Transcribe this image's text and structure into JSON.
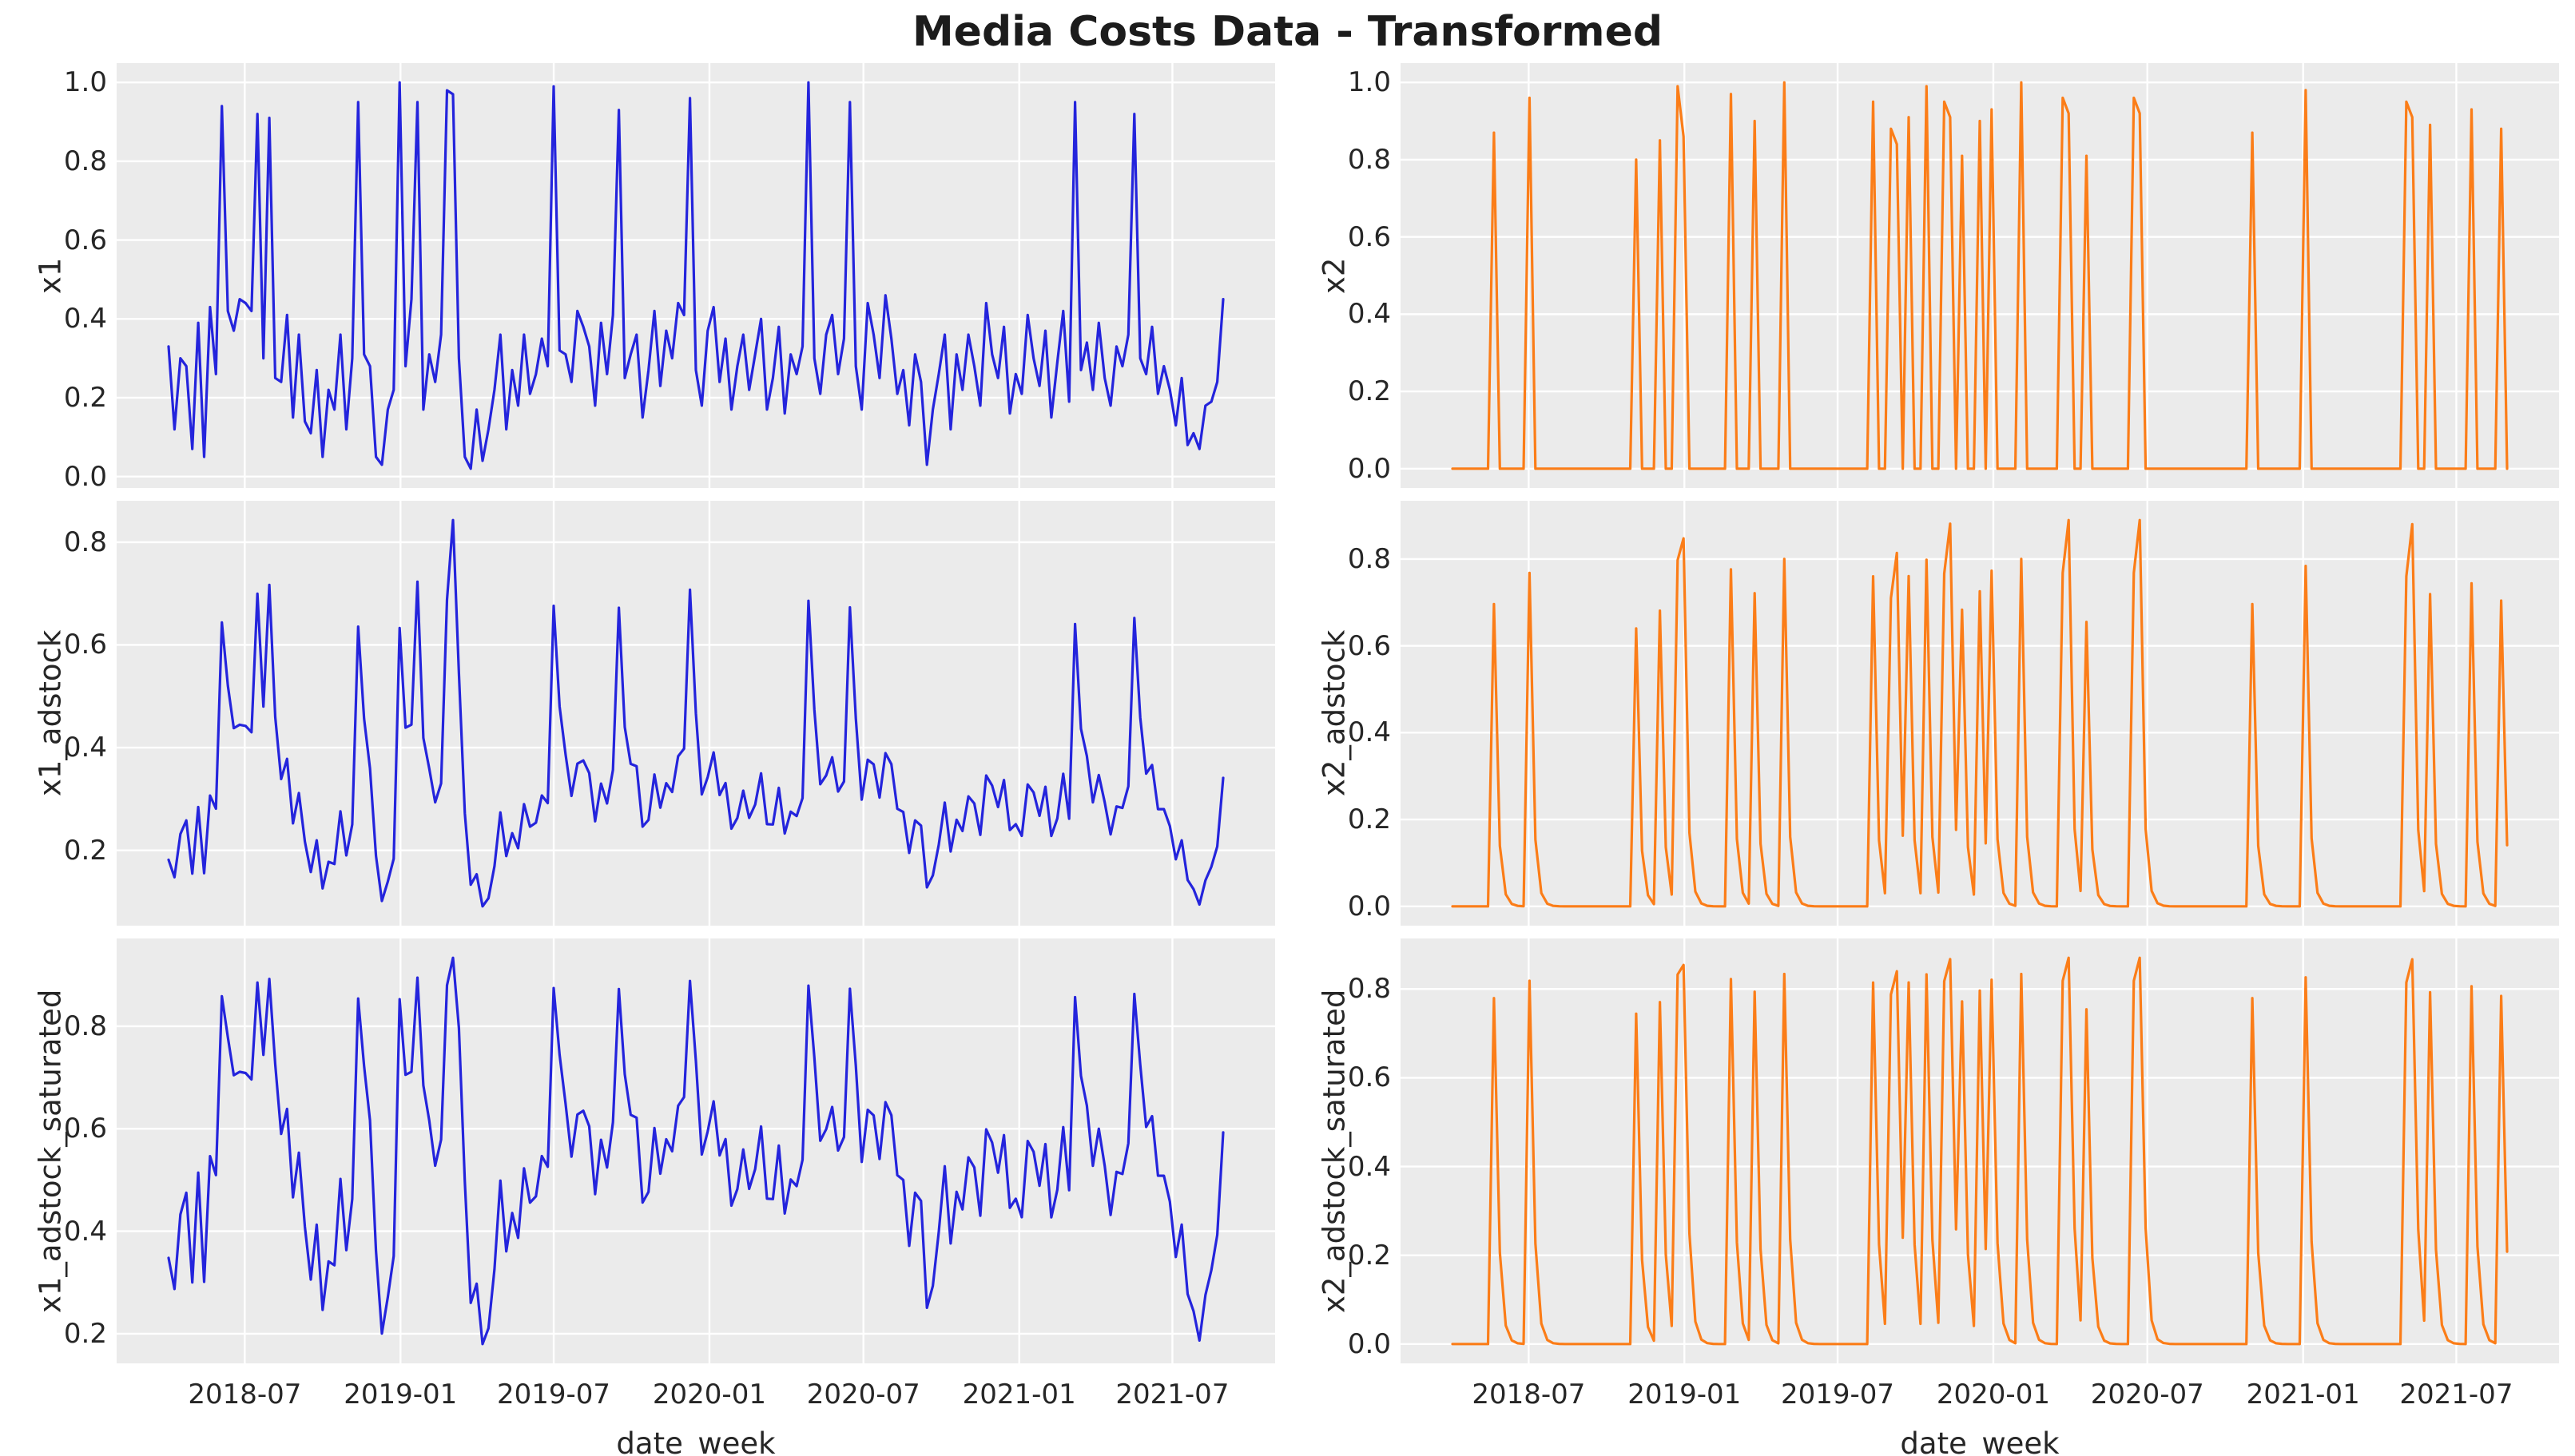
{
  "title": "Media Costs Data - Transformed",
  "style": {
    "figure_bg": "#ffffff",
    "axes_bg": "#ebebeb",
    "grid_color": "#ffffff",
    "text_color": "#262626",
    "title_color": "#1c1c1c",
    "x1_line_color": "#2424dc",
    "x2_line_color": "#fb7d18"
  },
  "chart_data": {
    "type": "line",
    "title": "Media Costs Data - Transformed",
    "xlabel": "date_week",
    "grid": "on",
    "legend": "none",
    "x_axis": {
      "start_date": "2018-04-02",
      "step_days": 7,
      "n_points": 179,
      "tick_labels": [
        "2018-07",
        "2019-01",
        "2019-07",
        "2020-01",
        "2020-07",
        "2021-01",
        "2021-07"
      ],
      "tick_dates": [
        "2018-07-01",
        "2019-01-01",
        "2019-07-01",
        "2020-01-01",
        "2020-07-01",
        "2021-01-01",
        "2021-07-01"
      ]
    },
    "panels": [
      {
        "key": "x1",
        "ylabel": "x1",
        "row": 0,
        "col": 0,
        "color": "#2424dc",
        "y_tick_labels": [
          "0.0",
          "0.2",
          "0.4",
          "0.6",
          "0.8",
          "1.0"
        ]
      },
      {
        "key": "x2",
        "ylabel": "x2",
        "row": 0,
        "col": 1,
        "color": "#fb7d18",
        "y_tick_labels": [
          "0.0",
          "0.2",
          "0.4",
          "0.6",
          "0.8",
          "1.0"
        ]
      },
      {
        "key": "x1_adstock",
        "ylabel": "x1_adstock",
        "row": 1,
        "col": 0,
        "color": "#2424dc",
        "y_tick_labels": [
          "0.2",
          "0.4",
          "0.6",
          "0.8"
        ]
      },
      {
        "key": "x2_adstock",
        "ylabel": "x2_adstock",
        "row": 1,
        "col": 1,
        "color": "#fb7d18",
        "y_tick_labels": [
          "0.0",
          "0.2",
          "0.4",
          "0.6",
          "0.8"
        ]
      },
      {
        "key": "x1_adstock_saturated",
        "ylabel": "x1_adstock_saturated",
        "row": 2,
        "col": 0,
        "color": "#2424dc",
        "y_tick_labels": [
          "0.2",
          "0.4",
          "0.6",
          "0.8"
        ]
      },
      {
        "key": "x2_adstock_saturated",
        "ylabel": "x2_adstock_saturated",
        "row": 2,
        "col": 1,
        "color": "#fb7d18",
        "y_tick_labels": [
          "0.0",
          "0.2",
          "0.4",
          "0.6",
          "0.8"
        ]
      }
    ],
    "series": {
      "x1": [
        0.33,
        0.12,
        0.3,
        0.28,
        0.07,
        0.39,
        0.05,
        0.43,
        0.26,
        0.94,
        0.42,
        0.37,
        0.45,
        0.44,
        0.42,
        0.92,
        0.3,
        0.91,
        0.25,
        0.24,
        0.41,
        0.15,
        0.36,
        0.14,
        0.11,
        0.27,
        0.05,
        0.22,
        0.17,
        0.36,
        0.12,
        0.3,
        0.95,
        0.31,
        0.28,
        0.05,
        0.03,
        0.17,
        0.22,
        1.0,
        0.28,
        0.45,
        0.95,
        0.17,
        0.31,
        0.24,
        0.36,
        0.98,
        0.97,
        0.3,
        0.05,
        0.02,
        0.17,
        0.04,
        0.12,
        0.22,
        0.36,
        0.12,
        0.27,
        0.18,
        0.36,
        0.21,
        0.26,
        0.35,
        0.28,
        0.99,
        0.32,
        0.31,
        0.24,
        0.42,
        0.38,
        0.33,
        0.18,
        0.39,
        0.26,
        0.41,
        0.93,
        0.25,
        0.31,
        0.36,
        0.15,
        0.27,
        0.42,
        0.23,
        0.37,
        0.3,
        0.44,
        0.41,
        0.96,
        0.27,
        0.18,
        0.37,
        0.43,
        0.24,
        0.35,
        0.17,
        0.28,
        0.36,
        0.22,
        0.31,
        0.4,
        0.17,
        0.25,
        0.38,
        0.16,
        0.31,
        0.26,
        0.33,
        1.0,
        0.3,
        0.21,
        0.36,
        0.41,
        0.26,
        0.35,
        0.95,
        0.28,
        0.17,
        0.44,
        0.36,
        0.25,
        0.46,
        0.35,
        0.21,
        0.27,
        0.13,
        0.31,
        0.24,
        0.03,
        0.17,
        0.26,
        0.36,
        0.12,
        0.31,
        0.22,
        0.36,
        0.28,
        0.18,
        0.44,
        0.31,
        0.25,
        0.38,
        0.16,
        0.26,
        0.21,
        0.41,
        0.3,
        0.23,
        0.37,
        0.15,
        0.29,
        0.42,
        0.19,
        0.95,
        0.27,
        0.34,
        0.22,
        0.39,
        0.25,
        0.18,
        0.33,
        0.28,
        0.36,
        0.92,
        0.3,
        0.26,
        0.38,
        0.21,
        0.28,
        0.22,
        0.13,
        0.25,
        0.08,
        0.11,
        0.07,
        0.18,
        0.19,
        0.24,
        0.45
      ],
      "x2": [
        0,
        0,
        0,
        0,
        0,
        0,
        0,
        0.87,
        0,
        0,
        0,
        0,
        0,
        0.96,
        0,
        0,
        0,
        0,
        0,
        0,
        0,
        0,
        0,
        0,
        0,
        0,
        0,
        0,
        0,
        0,
        0,
        0.8,
        0,
        0,
        0,
        0.85,
        0,
        0,
        0.99,
        0.86,
        0,
        0,
        0,
        0,
        0,
        0,
        0,
        0.97,
        0,
        0,
        0,
        0.9,
        0,
        0,
        0,
        0,
        1.0,
        0,
        0,
        0,
        0,
        0,
        0,
        0,
        0,
        0,
        0,
        0,
        0,
        0,
        0,
        0.95,
        0,
        0,
        0.88,
        0.84,
        0,
        0.91,
        0,
        0,
        0.99,
        0,
        0,
        0.95,
        0.91,
        0,
        0.81,
        0,
        0,
        0.9,
        0,
        0.93,
        0,
        0,
        0,
        0,
        1.0,
        0,
        0,
        0,
        0,
        0,
        0,
        0.96,
        0.92,
        0,
        0,
        0.81,
        0,
        0,
        0,
        0,
        0,
        0,
        0,
        0.96,
        0.92,
        0,
        0,
        0,
        0,
        0,
        0,
        0,
        0,
        0,
        0,
        0,
        0,
        0,
        0,
        0,
        0,
        0,
        0,
        0.87,
        0,
        0,
        0,
        0,
        0,
        0,
        0,
        0,
        0.98,
        0,
        0,
        0,
        0,
        0,
        0,
        0,
        0,
        0,
        0,
        0,
        0,
        0,
        0,
        0,
        0,
        0.95,
        0.91,
        0,
        0,
        0.89,
        0,
        0,
        0,
        0,
        0,
        0,
        0.93,
        0,
        0,
        0,
        0,
        0.88,
        0
      ]
    },
    "transforms": {
      "x1_adstock": {
        "base": "x1",
        "type": "geometric_adstock_normalized",
        "alpha": 0.45,
        "l_max": 8
      },
      "x2_adstock": {
        "base": "x2",
        "type": "geometric_adstock_normalized",
        "alpha": 0.2,
        "l_max": 6
      },
      "x1_adstock_saturated": {
        "base": "x1_adstock",
        "type": "logistic_saturation",
        "lam": 4
      },
      "x2_adstock_saturated": {
        "base": "x2_adstock",
        "type": "logistic_saturation",
        "lam": 3
      }
    }
  }
}
